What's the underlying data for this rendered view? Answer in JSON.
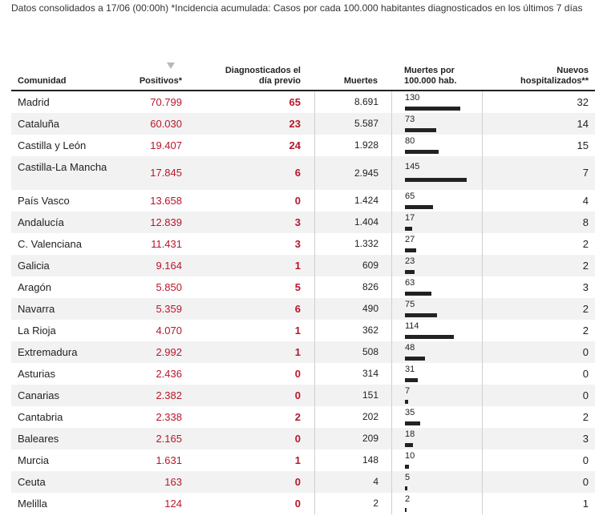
{
  "note": "Datos consolidados a 17/06 (00:00h) *Incidencia acumulada: Casos por cada 100.000 habitantes diagnosticados en los últimos 7 días",
  "headers": {
    "region": "Comunidad",
    "positives": "Positivos*",
    "previous_day": "Diagnosticados el día previo",
    "deaths": "Muertes",
    "deaths_per_100k": "Muertes por 100.000 hab.",
    "new_hospitalized": "Nuevos hospitalizados**"
  },
  "colors": {
    "accent": "#b8162b",
    "bar": "#222222"
  },
  "max_rate": 145,
  "rows": [
    {
      "region": "Madrid",
      "positives": "70.799",
      "previous_day": "65",
      "deaths": "8.691",
      "rate": "130",
      "hospitalized": "32"
    },
    {
      "region": "Cataluña",
      "positives": "60.030",
      "previous_day": "23",
      "deaths": "5.587",
      "rate": "73",
      "hospitalized": "14"
    },
    {
      "region": "Castilla y León",
      "positives": "19.407",
      "previous_day": "24",
      "deaths": "1.928",
      "rate": "80",
      "hospitalized": "15"
    },
    {
      "region": "Castilla-La Mancha",
      "positives": "17.845",
      "previous_day": "6",
      "deaths": "2.945",
      "rate": "145",
      "hospitalized": "7"
    },
    {
      "region": "País Vasco",
      "positives": "13.658",
      "previous_day": "0",
      "deaths": "1.424",
      "rate": "65",
      "hospitalized": "4"
    },
    {
      "region": "Andalucía",
      "positives": "12.839",
      "previous_day": "3",
      "deaths": "1.404",
      "rate": "17",
      "hospitalized": "8"
    },
    {
      "region": "C. Valenciana",
      "positives": "11.431",
      "previous_day": "3",
      "deaths": "1.332",
      "rate": "27",
      "hospitalized": "2"
    },
    {
      "region": "Galicia",
      "positives": "9.164",
      "previous_day": "1",
      "deaths": "609",
      "rate": "23",
      "hospitalized": "2"
    },
    {
      "region": "Aragón",
      "positives": "5.850",
      "previous_day": "5",
      "deaths": "826",
      "rate": "63",
      "hospitalized": "3"
    },
    {
      "region": "Navarra",
      "positives": "5.359",
      "previous_day": "6",
      "deaths": "490",
      "rate": "75",
      "hospitalized": "2"
    },
    {
      "region": "La Rioja",
      "positives": "4.070",
      "previous_day": "1",
      "deaths": "362",
      "rate": "114",
      "hospitalized": "2"
    },
    {
      "region": "Extremadura",
      "positives": "2.992",
      "previous_day": "1",
      "deaths": "508",
      "rate": "48",
      "hospitalized": "0"
    },
    {
      "region": "Asturias",
      "positives": "2.436",
      "previous_day": "0",
      "deaths": "314",
      "rate": "31",
      "hospitalized": "0"
    },
    {
      "region": "Canarias",
      "positives": "2.382",
      "previous_day": "0",
      "deaths": "151",
      "rate": "7",
      "hospitalized": "0"
    },
    {
      "region": "Cantabria",
      "positives": "2.338",
      "previous_day": "2",
      "deaths": "202",
      "rate": "35",
      "hospitalized": "2"
    },
    {
      "region": "Baleares",
      "positives": "2.165",
      "previous_day": "0",
      "deaths": "209",
      "rate": "18",
      "hospitalized": "3"
    },
    {
      "region": "Murcia",
      "positives": "1.631",
      "previous_day": "1",
      "deaths": "148",
      "rate": "10",
      "hospitalized": "0"
    },
    {
      "region": "Ceuta",
      "positives": "163",
      "previous_day": "0",
      "deaths": "4",
      "rate": "5",
      "hospitalized": "0"
    },
    {
      "region": "Melilla",
      "positives": "124",
      "previous_day": "0",
      "deaths": "2",
      "rate": "2",
      "hospitalized": "1"
    }
  ]
}
